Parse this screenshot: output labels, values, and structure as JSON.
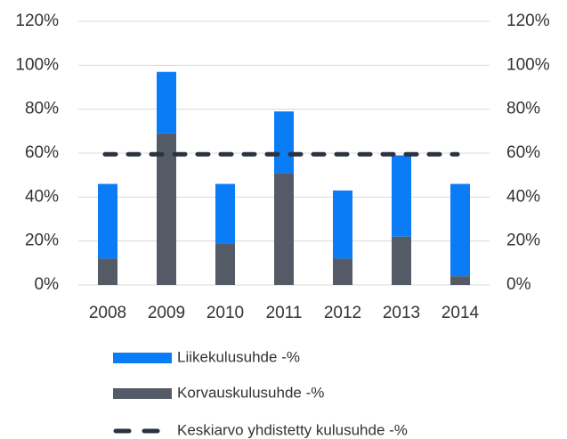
{
  "chart_data": {
    "type": "bar",
    "stacked": true,
    "categories": [
      "2008",
      "2009",
      "2010",
      "2011",
      "2012",
      "2013",
      "2014"
    ],
    "series": [
      {
        "name": "Liikekulusuhde -%",
        "color": "#0a7cf5",
        "values": [
          34,
          28,
          27,
          28,
          31,
          37,
          42
        ]
      },
      {
        "name": "Korvauskulusuhde -%",
        "color": "#545b66",
        "values": [
          12,
          69,
          19,
          51,
          12,
          22,
          4
        ]
      },
      {
        "name": "Keskiarvo yhdistetty kulusuhde -%",
        "color": "#2b3340",
        "type": "line",
        "dashed": true,
        "values": [
          59.5,
          59.5,
          59.5,
          59.5,
          59.5,
          59.5,
          59.5
        ]
      }
    ],
    "ylim": [
      0,
      120
    ],
    "yticks": [
      {
        "value": 0,
        "label": "0%"
      },
      {
        "value": 20,
        "label": "20%"
      },
      {
        "value": 40,
        "label": "40%"
      },
      {
        "value": 60,
        "label": "60%"
      },
      {
        "value": 80,
        "label": "80%"
      },
      {
        "value": 100,
        "label": "100%"
      },
      {
        "value": 120,
        "label": "120%"
      }
    ],
    "y2lim": [
      0,
      120
    ],
    "y2ticks": [
      {
        "value": 0,
        "label": "0%"
      },
      {
        "value": 20,
        "label": "20%"
      },
      {
        "value": 40,
        "label": "40%"
      },
      {
        "value": 60,
        "label": "60%"
      },
      {
        "value": 80,
        "label": "80%"
      },
      {
        "value": 100,
        "label": "100%"
      },
      {
        "value": 120,
        "label": "120%"
      }
    ],
    "grid": true,
    "legend": "bottom"
  }
}
